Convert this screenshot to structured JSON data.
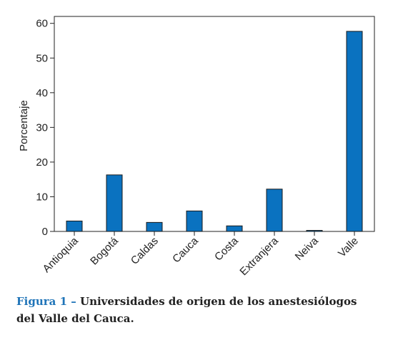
{
  "chart_data": {
    "type": "bar",
    "title": "",
    "xlabel": "",
    "ylabel": "Porcentaje",
    "ylim": [
      0,
      62
    ],
    "yticks": [
      0,
      10,
      20,
      30,
      40,
      50,
      60
    ],
    "categories": [
      "Antioquia",
      "Bogotá",
      "Caldas",
      "Cauca",
      "Costa",
      "Extranjera",
      "Neiva",
      "Valle"
    ],
    "values": [
      3.0,
      16.3,
      2.6,
      5.9,
      1.6,
      12.2,
      0.3,
      57.7
    ],
    "bar_color": "#0a72c0",
    "grid": false
  },
  "caption": {
    "label": "Figura 1 –",
    "text_line1": "Universidades de origen de los anestesiólogos",
    "text_line2": "del Valle del Cauca.",
    "label_color": "#1f74b8"
  }
}
